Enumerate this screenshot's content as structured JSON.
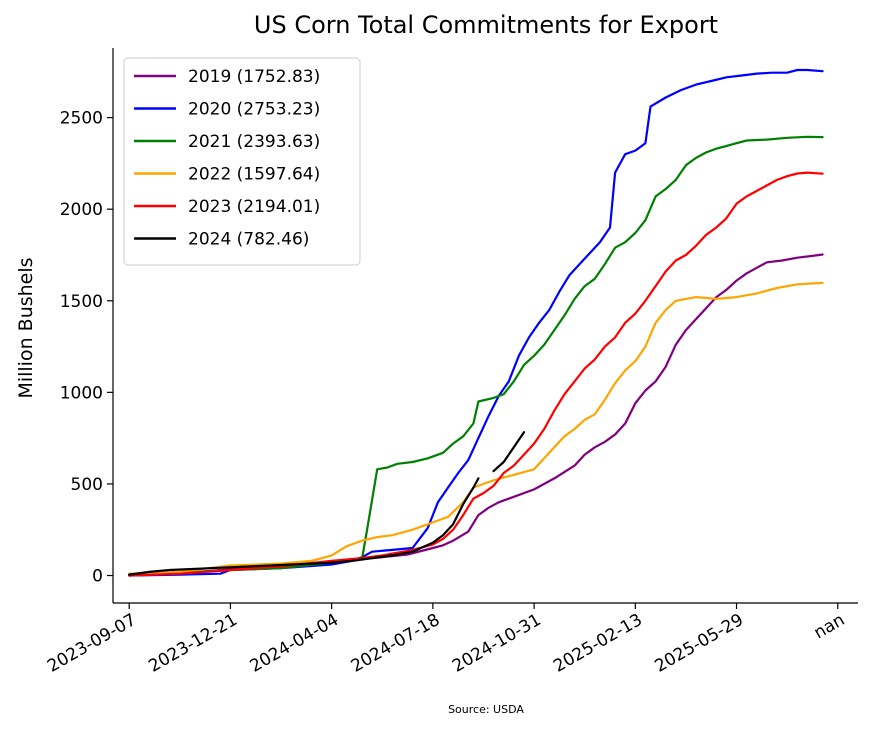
{
  "chart_data": {
    "type": "line",
    "title": "US Corn Total Commitments for Export",
    "ylabel": "Million Bushels",
    "xlabel": "",
    "source": "Source: USDA",
    "ylim": [
      -150,
      2880
    ],
    "xlim": [
      -0.16,
      7.2
    ],
    "grid": false,
    "legend_position": "top-left",
    "x_ticks": [
      {
        "pos": 0,
        "label": "2023-09-07"
      },
      {
        "pos": 1,
        "label": "2023-12-21"
      },
      {
        "pos": 2,
        "label": "2024-04-04"
      },
      {
        "pos": 3,
        "label": "2024-07-18"
      },
      {
        "pos": 4,
        "label": "2024-10-31"
      },
      {
        "pos": 5,
        "label": "2025-02-13"
      },
      {
        "pos": 6,
        "label": "2025-05-29"
      },
      {
        "pos": 7,
        "label": "nan"
      }
    ],
    "y_ticks": [
      0,
      500,
      1000,
      1500,
      2000,
      2500
    ],
    "series": [
      {
        "name": "2019 (1752.83)",
        "color": "#800080",
        "points": [
          [
            0,
            0
          ],
          [
            0.5,
            10
          ],
          [
            1,
            35
          ],
          [
            1.5,
            45
          ],
          [
            2,
            70
          ],
          [
            2.3,
            90
          ],
          [
            2.5,
            100
          ],
          [
            2.75,
            115
          ],
          [
            3,
            150
          ],
          [
            3.1,
            165
          ],
          [
            3.2,
            190
          ],
          [
            3.35,
            240
          ],
          [
            3.45,
            330
          ],
          [
            3.55,
            370
          ],
          [
            3.65,
            400
          ],
          [
            3.8,
            430
          ],
          [
            4,
            470
          ],
          [
            4.2,
            530
          ],
          [
            4.4,
            600
          ],
          [
            4.5,
            660
          ],
          [
            4.6,
            700
          ],
          [
            4.7,
            730
          ],
          [
            4.8,
            770
          ],
          [
            4.9,
            830
          ],
          [
            5,
            940
          ],
          [
            5.1,
            1010
          ],
          [
            5.2,
            1060
          ],
          [
            5.3,
            1140
          ],
          [
            5.4,
            1260
          ],
          [
            5.5,
            1340
          ],
          [
            5.6,
            1400
          ],
          [
            5.7,
            1460
          ],
          [
            5.8,
            1520
          ],
          [
            5.9,
            1560
          ],
          [
            6,
            1610
          ],
          [
            6.1,
            1650
          ],
          [
            6.2,
            1680
          ],
          [
            6.3,
            1710
          ],
          [
            6.45,
            1720
          ],
          [
            6.6,
            1735
          ],
          [
            6.75,
            1745
          ],
          [
            6.85,
            1752.83
          ]
        ]
      },
      {
        "name": "2020 (2753.23)",
        "color": "#0000ff",
        "points": [
          [
            0,
            0
          ],
          [
            0.5,
            5
          ],
          [
            0.9,
            10
          ],
          [
            1,
            30
          ],
          [
            1.5,
            40
          ],
          [
            2,
            60
          ],
          [
            2.2,
            80
          ],
          [
            2.3,
            100
          ],
          [
            2.4,
            130
          ],
          [
            2.6,
            140
          ],
          [
            2.8,
            150
          ],
          [
            2.95,
            260
          ],
          [
            3.05,
            400
          ],
          [
            3.15,
            480
          ],
          [
            3.25,
            560
          ],
          [
            3.35,
            630
          ],
          [
            3.45,
            750
          ],
          [
            3.55,
            870
          ],
          [
            3.65,
            980
          ],
          [
            3.75,
            1060
          ],
          [
            3.85,
            1200
          ],
          [
            3.95,
            1300
          ],
          [
            4.05,
            1380
          ],
          [
            4.15,
            1450
          ],
          [
            4.25,
            1550
          ],
          [
            4.35,
            1640
          ],
          [
            4.45,
            1700
          ],
          [
            4.55,
            1760
          ],
          [
            4.65,
            1820
          ],
          [
            4.75,
            1900
          ],
          [
            4.8,
            2200
          ],
          [
            4.9,
            2300
          ],
          [
            5,
            2320
          ],
          [
            5.1,
            2360
          ],
          [
            5.15,
            2560
          ],
          [
            5.3,
            2610
          ],
          [
            5.45,
            2650
          ],
          [
            5.6,
            2680
          ],
          [
            5.75,
            2700
          ],
          [
            5.9,
            2720
          ],
          [
            6.05,
            2730
          ],
          [
            6.2,
            2740
          ],
          [
            6.35,
            2745
          ],
          [
            6.5,
            2745
          ],
          [
            6.6,
            2760
          ],
          [
            6.7,
            2760
          ],
          [
            6.85,
            2753.23
          ]
        ]
      },
      {
        "name": "2021 (2393.63)",
        "color": "#008000",
        "points": [
          [
            0,
            0
          ],
          [
            0.5,
            15
          ],
          [
            1,
            30
          ],
          [
            1.5,
            40
          ],
          [
            2,
            70
          ],
          [
            2.3,
            90
          ],
          [
            2.35,
            250
          ],
          [
            2.45,
            580
          ],
          [
            2.55,
            590
          ],
          [
            2.65,
            610
          ],
          [
            2.8,
            620
          ],
          [
            2.95,
            640
          ],
          [
            3.1,
            670
          ],
          [
            3.2,
            720
          ],
          [
            3.3,
            760
          ],
          [
            3.4,
            830
          ],
          [
            3.45,
            950
          ],
          [
            3.6,
            970
          ],
          [
            3.7,
            990
          ],
          [
            3.8,
            1060
          ],
          [
            3.9,
            1150
          ],
          [
            4,
            1200
          ],
          [
            4.1,
            1260
          ],
          [
            4.2,
            1340
          ],
          [
            4.3,
            1420
          ],
          [
            4.4,
            1510
          ],
          [
            4.5,
            1580
          ],
          [
            4.6,
            1620
          ],
          [
            4.7,
            1700
          ],
          [
            4.8,
            1790
          ],
          [
            4.9,
            1820
          ],
          [
            5,
            1870
          ],
          [
            5.1,
            1940
          ],
          [
            5.2,
            2070
          ],
          [
            5.3,
            2110
          ],
          [
            5.4,
            2160
          ],
          [
            5.5,
            2240
          ],
          [
            5.6,
            2280
          ],
          [
            5.7,
            2310
          ],
          [
            5.8,
            2330
          ],
          [
            5.9,
            2345
          ],
          [
            6,
            2360
          ],
          [
            6.1,
            2375
          ],
          [
            6.3,
            2380
          ],
          [
            6.5,
            2390
          ],
          [
            6.7,
            2395
          ],
          [
            6.85,
            2393.63
          ]
        ]
      },
      {
        "name": "2022 (1597.64)",
        "color": "#ffa500",
        "points": [
          [
            0,
            10
          ],
          [
            0.5,
            20
          ],
          [
            1,
            55
          ],
          [
            1.5,
            65
          ],
          [
            1.8,
            80
          ],
          [
            2,
            110
          ],
          [
            2.15,
            160
          ],
          [
            2.3,
            190
          ],
          [
            2.45,
            210
          ],
          [
            2.6,
            220
          ],
          [
            2.8,
            250
          ],
          [
            3,
            290
          ],
          [
            3.15,
            320
          ],
          [
            3.3,
            400
          ],
          [
            3.4,
            480
          ],
          [
            3.5,
            500
          ],
          [
            3.6,
            520
          ],
          [
            3.8,
            550
          ],
          [
            4,
            580
          ],
          [
            4.1,
            640
          ],
          [
            4.2,
            700
          ],
          [
            4.3,
            760
          ],
          [
            4.4,
            800
          ],
          [
            4.5,
            850
          ],
          [
            4.6,
            880
          ],
          [
            4.7,
            960
          ],
          [
            4.8,
            1050
          ],
          [
            4.9,
            1120
          ],
          [
            5,
            1170
          ],
          [
            5.1,
            1250
          ],
          [
            5.2,
            1380
          ],
          [
            5.3,
            1450
          ],
          [
            5.4,
            1500
          ],
          [
            5.5,
            1510
          ],
          [
            5.6,
            1520
          ],
          [
            5.8,
            1510
          ],
          [
            6,
            1520
          ],
          [
            6.2,
            1540
          ],
          [
            6.4,
            1570
          ],
          [
            6.6,
            1590
          ],
          [
            6.85,
            1597.64
          ]
        ]
      },
      {
        "name": "2023 (2194.01)",
        "color": "#ff0000",
        "points": [
          [
            0,
            0
          ],
          [
            0.5,
            10
          ],
          [
            1,
            30
          ],
          [
            1.5,
            50
          ],
          [
            2,
            80
          ],
          [
            2.3,
            95
          ],
          [
            2.5,
            110
          ],
          [
            2.8,
            140
          ],
          [
            3,
            170
          ],
          [
            3.1,
            200
          ],
          [
            3.2,
            250
          ],
          [
            3.3,
            330
          ],
          [
            3.4,
            420
          ],
          [
            3.5,
            450
          ],
          [
            3.6,
            490
          ],
          [
            3.7,
            560
          ],
          [
            3.8,
            600
          ],
          [
            3.9,
            660
          ],
          [
            4,
            720
          ],
          [
            4.1,
            800
          ],
          [
            4.2,
            900
          ],
          [
            4.3,
            990
          ],
          [
            4.4,
            1060
          ],
          [
            4.5,
            1130
          ],
          [
            4.6,
            1180
          ],
          [
            4.7,
            1250
          ],
          [
            4.8,
            1300
          ],
          [
            4.9,
            1380
          ],
          [
            5,
            1430
          ],
          [
            5.1,
            1500
          ],
          [
            5.2,
            1580
          ],
          [
            5.3,
            1660
          ],
          [
            5.4,
            1720
          ],
          [
            5.5,
            1750
          ],
          [
            5.6,
            1800
          ],
          [
            5.7,
            1860
          ],
          [
            5.8,
            1900
          ],
          [
            5.9,
            1950
          ],
          [
            6,
            2030
          ],
          [
            6.1,
            2070
          ],
          [
            6.2,
            2100
          ],
          [
            6.3,
            2130
          ],
          [
            6.4,
            2160
          ],
          [
            6.5,
            2180
          ],
          [
            6.6,
            2195
          ],
          [
            6.7,
            2200
          ],
          [
            6.85,
            2194.01
          ]
        ]
      },
      {
        "name": "2024 (782.46)",
        "color": "#000000",
        "points": [
          [
            0,
            5
          ],
          [
            0.2,
            20
          ],
          [
            0.4,
            30
          ],
          [
            0.6,
            35
          ],
          [
            0.8,
            40
          ],
          [
            1,
            45
          ],
          [
            1.2,
            50
          ],
          [
            1.4,
            55
          ],
          [
            1.6,
            60
          ],
          [
            1.8,
            65
          ],
          [
            2,
            70
          ],
          [
            2.2,
            80
          ],
          [
            2.4,
            95
          ],
          [
            2.6,
            110
          ],
          [
            2.8,
            130
          ],
          [
            3,
            180
          ],
          [
            3.1,
            220
          ],
          [
            3.2,
            280
          ],
          [
            3.3,
            390
          ],
          [
            3.4,
            480
          ],
          [
            3.45,
            530
          ],
          [
            null,
            null
          ],
          [
            3.6,
            570
          ],
          [
            3.7,
            620
          ],
          [
            3.8,
            700
          ],
          [
            3.9,
            782.46
          ]
        ]
      }
    ]
  }
}
